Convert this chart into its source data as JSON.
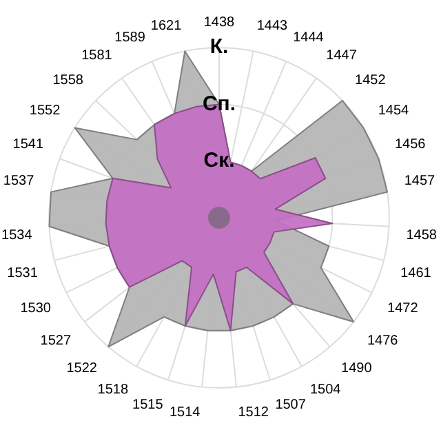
{
  "chart_data": {
    "type": "radar",
    "categories": [
      "1438",
      "1443",
      "1444",
      "1447",
      "1452",
      "1454",
      "1456",
      "1457",
      "1458",
      "1461",
      "1472",
      "1476",
      "1490",
      "1504",
      "1507",
      "1512",
      "1514",
      "1515",
      "1518",
      "1522",
      "1527",
      "1530",
      "1531",
      "1534",
      "1537",
      "1541",
      "1552",
      "1558",
      "1581",
      "1589",
      "1621"
    ],
    "series": [
      {
        "color": "#b4b4b4",
        "values": [
          2,
          1,
          1,
          1,
          3,
          3,
          3,
          3,
          1,
          2,
          2,
          3,
          2,
          2,
          2,
          2,
          2,
          2,
          2,
          3,
          2,
          2,
          2,
          3,
          3,
          2,
          3,
          2,
          2,
          2,
          3
        ]
      },
      {
        "color": "#c36fc3",
        "values": [
          2,
          1,
          1,
          1,
          1,
          2,
          2,
          1,
          2,
          1,
          1,
          1,
          2,
          1,
          1,
          2,
          1,
          2,
          1,
          1,
          2,
          2,
          2,
          2,
          2,
          2,
          1,
          1.5,
          2,
          2,
          2
        ]
      }
    ],
    "ylim": [
      0,
      3
    ],
    "yticks": [
      {
        "value": 1,
        "label": "Ск."
      },
      {
        "value": 2,
        "label": "Сп."
      },
      {
        "value": 3,
        "label": "К."
      }
    ],
    "grid": true,
    "legend": false
  }
}
